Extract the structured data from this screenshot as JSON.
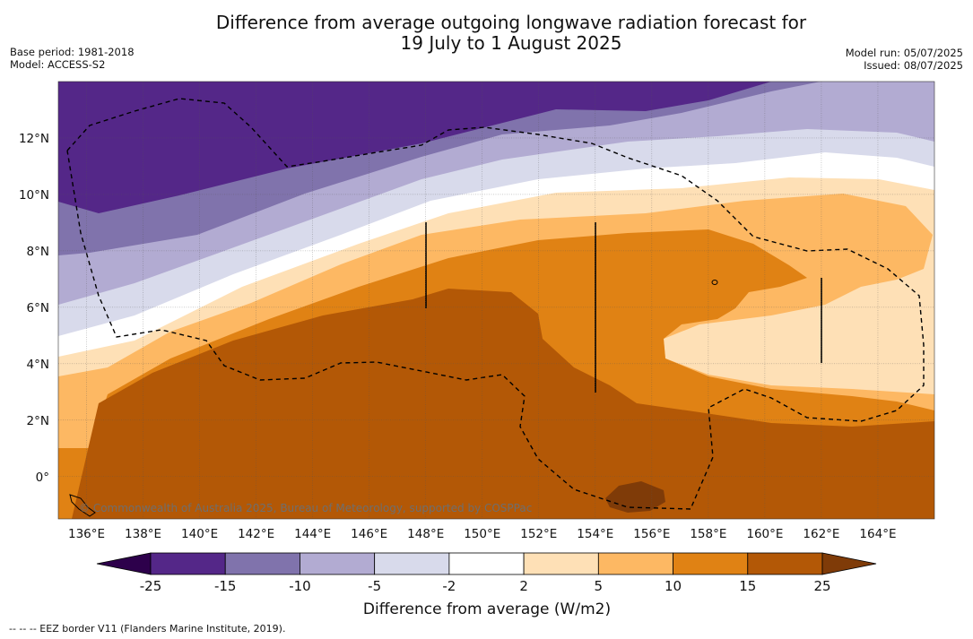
{
  "title_line1": "Difference from average outgoing longwave radiation forecast for",
  "title_line2": "19 July to 1 August 2025",
  "meta_left": [
    "Base period: 1981-2018",
    "Model: ACCESS-S2"
  ],
  "meta_right": [
    "Model run: 05/07/2025",
    "Issued: 08/07/2025"
  ],
  "copyright": "© Commonwealth of Australia 2025, Bureau of Meteorology, supported by COSPPac",
  "footnote": "--  --  -- EEZ border V11 (Flanders Marine Institute, 2019).",
  "chart_data": {
    "type": "heatmap",
    "title": "Difference from average outgoing longwave radiation forecast for 19 July to 1 August 2025",
    "x_ticks": [
      "136°E",
      "138°E",
      "140°E",
      "142°E",
      "144°E",
      "146°E",
      "148°E",
      "150°E",
      "152°E",
      "154°E",
      "156°E",
      "158°E",
      "160°E",
      "162°E",
      "164°E"
    ],
    "x_values": [
      136,
      138,
      140,
      142,
      144,
      146,
      148,
      150,
      152,
      154,
      156,
      158,
      160,
      162,
      164
    ],
    "y_ticks": [
      "0°",
      "2°N",
      "4°N",
      "6°N",
      "8°N",
      "10°N",
      "12°N"
    ],
    "y_values": [
      0,
      2,
      4,
      6,
      8,
      10,
      12
    ],
    "xlim": [
      135,
      166
    ],
    "ylim": [
      -1.5,
      14
    ],
    "grid": true,
    "colorbar": {
      "label": "Difference from average (W/m2)",
      "tick_labels": [
        "-25",
        "-15",
        "-10",
        "-5",
        "-2",
        "2",
        "5",
        "10",
        "15",
        "25"
      ],
      "bins": [
        {
          "range": "< -25",
          "color": "#2d004b"
        },
        {
          "range": "-25 to -15",
          "color": "#542788"
        },
        {
          "range": "-15 to -10",
          "color": "#8073ac"
        },
        {
          "range": "-10 to -5",
          "color": "#b2abd2"
        },
        {
          "range": "-5 to -2",
          "color": "#d8daeb"
        },
        {
          "range": "-2 to 2",
          "color": "#ffffff"
        },
        {
          "range": "2 to 5",
          "color": "#fee0b6"
        },
        {
          "range": "5 to 10",
          "color": "#fdb863"
        },
        {
          "range": "10 to 15",
          "color": "#e08214"
        },
        {
          "range": "15 to 25",
          "color": "#b35806"
        },
        {
          "range": "> 25",
          "color": "#7f3b08"
        }
      ]
    }
  }
}
